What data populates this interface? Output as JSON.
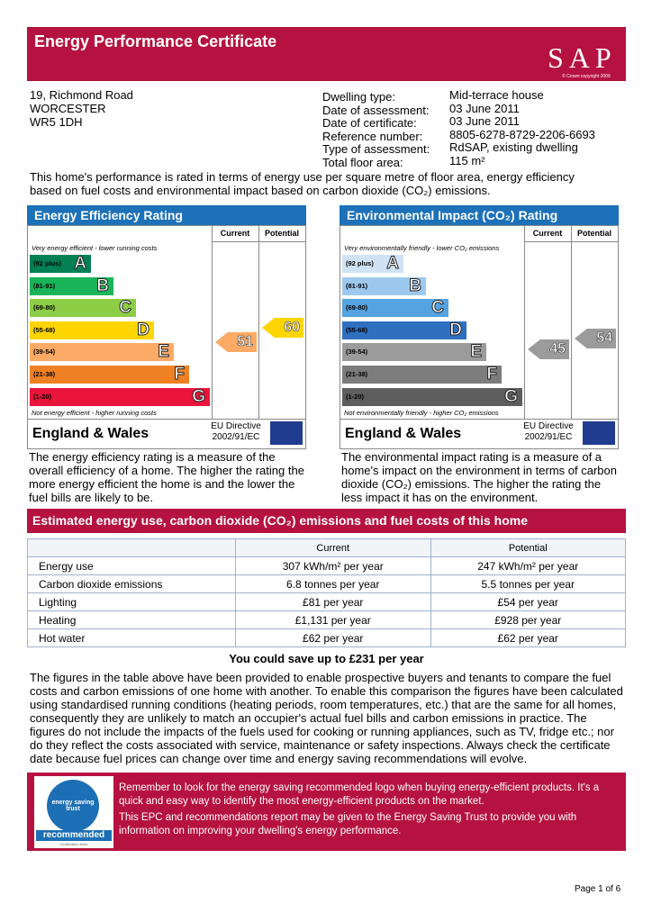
{
  "header": {
    "title": "Energy Performance Certificate",
    "logo": "SAP",
    "copyright": "© Crown copyright 2009"
  },
  "address": [
    "19, Richmond Road",
    "WORCESTER",
    "WR5 1DH"
  ],
  "details": [
    {
      "label": "Dwelling type:",
      "value": "Mid-terrace house"
    },
    {
      "label": "Date of assessment:",
      "value": "03 June 2011"
    },
    {
      "label": "Date of certificate:",
      "value": "03 June 2011"
    },
    {
      "label": "Reference number:",
      "value": "8805-6278-8729-2206-6693"
    },
    {
      "label": "Type of assessment:",
      "value": "RdSAP, existing dwelling"
    },
    {
      "label": "Total floor area:",
      "value": "115 m²"
    }
  ],
  "intro": "This home's performance is rated in terms of energy use per square metre of floor area, energy efficiency based on fuel costs and environmental impact based on carbon dioxide (CO₂) emissions.",
  "panels": [
    {
      "title": "Energy Efficiency Rating",
      "columns": [
        "Current",
        "Potential"
      ],
      "top_note": "Very energy efficient - lower running costs",
      "bands": [
        {
          "range": "(92 plus)",
          "letter": "A"
        },
        {
          "range": "(81-91)",
          "letter": "B"
        },
        {
          "range": "(69-80)",
          "letter": "C"
        },
        {
          "range": "(55-68)",
          "letter": "D"
        },
        {
          "range": "(39-54)",
          "letter": "E"
        },
        {
          "range": "(21-38)",
          "letter": "F"
        },
        {
          "range": "(1-20)",
          "letter": "G"
        }
      ],
      "bottom_note": "Not energy efficient - higher running costs",
      "current": 51,
      "potential": 60,
      "region": "England & Wales",
      "directive": [
        "EU Directive",
        "2002/91/EC"
      ],
      "description": "The energy efficiency rating is a measure of the overall efficiency of a home. The higher the rating the more energy efficient the home is and the lower the fuel bills are likely to be."
    },
    {
      "title": "Environmental Impact (CO₂) Rating",
      "columns": [
        "Current",
        "Potential"
      ],
      "top_note": "Very environmentally friendly - lower CO₂ emissions",
      "bands": [
        {
          "range": "(92 plus)",
          "letter": "A"
        },
        {
          "range": "(81-91)",
          "letter": "B"
        },
        {
          "range": "(69-80)",
          "letter": "C"
        },
        {
          "range": "(55-68)",
          "letter": "D"
        },
        {
          "range": "(39-54)",
          "letter": "E"
        },
        {
          "range": "(21-38)",
          "letter": "F"
        },
        {
          "range": "(1-20)",
          "letter": "G"
        }
      ],
      "bottom_note": "Not environmentally friendly - higher CO₂ emissions",
      "current": 45,
      "potential": 54,
      "region": "England & Wales",
      "directive": [
        "EU Directive",
        "2002/91/EC"
      ],
      "description": "The environmental impact rating is a measure of a home's impact on the environment in terms of carbon dioxide (CO₂) emissions. The higher the rating the less impact it has on the environment."
    }
  ],
  "costs": {
    "title": "Estimated energy use, carbon dioxide (CO₂) emissions and fuel costs of this home",
    "columns": [
      "Current",
      "Potential"
    ],
    "rows": [
      [
        "Energy use",
        "307 kWh/m² per year",
        "247 kWh/m² per year"
      ],
      [
        "Carbon dioxide emissions",
        "6.8 tonnes per year",
        "5.5 tonnes per year"
      ],
      [
        "Lighting",
        "£81 per year",
        "£54 per year"
      ],
      [
        "Heating",
        "£1,131 per year",
        "£928 per year"
      ],
      [
        "Hot water",
        "£62 per year",
        "£62 per year"
      ]
    ],
    "savings": "You could save up to £231 per year",
    "explanation": "The figures in the table above have been provided to enable prospective buyers and tenants to compare the fuel costs and carbon emissions of one home with another. To enable this comparison the figures have been calculated using standardised running conditions (heating periods, room temperatures, etc.) that are the same for all homes, consequently they are unlikely to match an occupier's actual fuel bills and carbon emissions in practice. The figures do not include the impacts of the fuels used for cooking or running appliances, such as TV, fridge etc.; nor do they reflect the costs associated with service, maintenance or safety inspections. Always check the certificate date because fuel prices can change over time and energy saving recommendations will evolve."
  },
  "footer": {
    "logo": [
      "energy saving trust",
      "recommended",
      "Certification Mark"
    ],
    "paragraphs": [
      "Remember to look for the energy saving recommended logo when buying energy-efficient products. It's a quick and easy way to identify the most energy-efficient products on the market.",
      "This EPC and recommendations report may be given to the Energy Saving Trust to provide you with information on improving your dwelling's energy performance."
    ]
  },
  "page": "Page 1 of 6"
}
